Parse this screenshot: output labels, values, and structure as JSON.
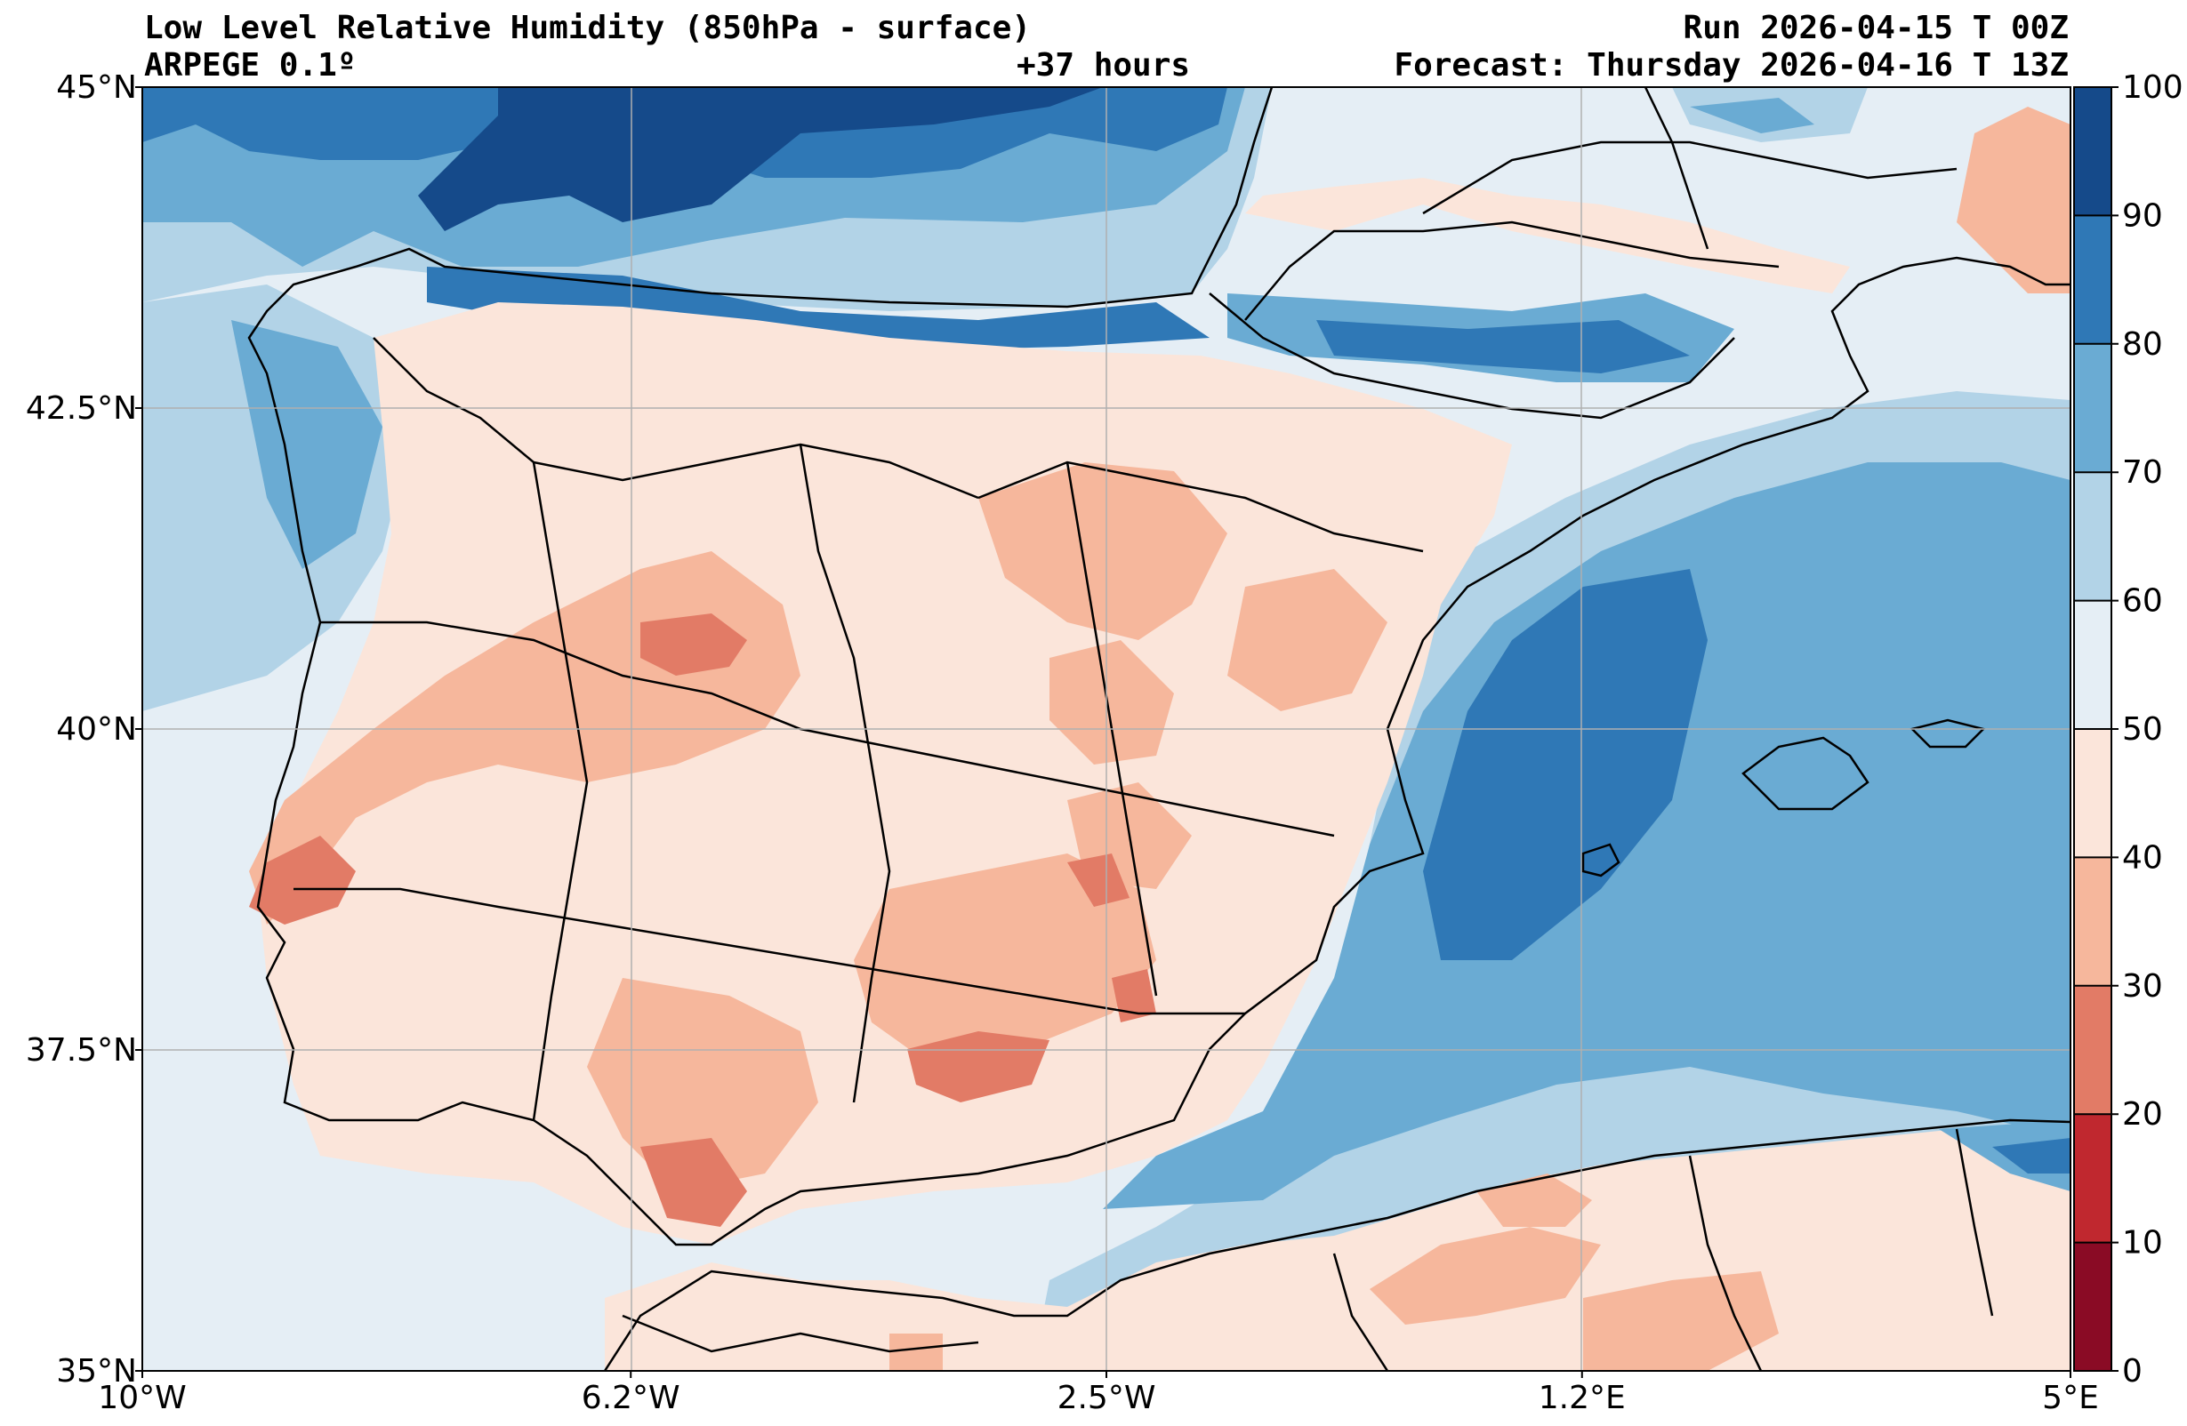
{
  "header": {
    "title": "Low Level Relative Humidity (850hPa - surface)",
    "model": "ARPEGE 0.1º",
    "lead_time": "+37 hours",
    "run": "Run 2026-04-15 T 00Z",
    "forecast": "Forecast: Thursday 2026-04-16 T 13Z"
  },
  "map": {
    "lon_range": [
      -10,
      5
    ],
    "lat_range": [
      35,
      45
    ],
    "x_ticks": [
      {
        "value": -10,
        "label": "10°W"
      },
      {
        "value": -6.2,
        "label": "6.2°W"
      },
      {
        "value": -2.5,
        "label": "2.5°W"
      },
      {
        "value": 1.2,
        "label": "1.2°E"
      },
      {
        "value": 5,
        "label": "5°E"
      }
    ],
    "y_ticks": [
      {
        "value": 35,
        "label": "35°N"
      },
      {
        "value": 37.5,
        "label": "37.5°N"
      },
      {
        "value": 40,
        "label": "40°N"
      },
      {
        "value": 42.5,
        "label": "42.5°N"
      },
      {
        "value": 45,
        "label": "45°N"
      }
    ],
    "grid": true
  },
  "colorbar": {
    "levels": [
      0,
      10,
      20,
      30,
      40,
      50,
      60,
      70,
      80,
      90,
      100
    ],
    "labels": [
      "0",
      "10",
      "20",
      "30",
      "40",
      "50",
      "60",
      "70",
      "80",
      "90",
      "100"
    ],
    "colors": [
      "#8a0b25",
      "#c0282f",
      "#e27b66",
      "#f6b79c",
      "#fbe5da",
      "#e5eef5",
      "#b2d3e7",
      "#6aabd3",
      "#2f78b6",
      "#154a8a"
    ]
  }
}
